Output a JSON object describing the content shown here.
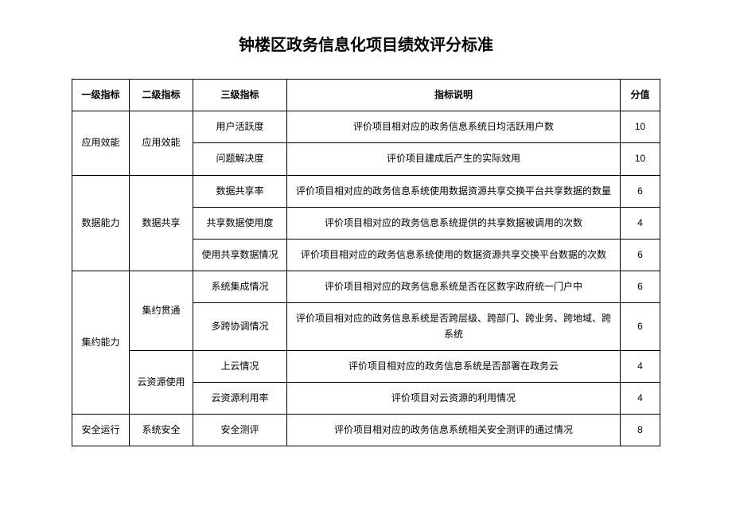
{
  "title": "钟楼区政务信息化项目绩效评分标准",
  "columns": [
    "一级指标",
    "二级指标",
    "三级指标",
    "指标说明",
    "分值"
  ],
  "rows": [
    {
      "l3": "用户活跃度",
      "desc": "评价项目相对应的政务信息系统日均活跃用户数",
      "score": "10"
    },
    {
      "l3": "问题解决度",
      "desc": "评价项目建成后产生的实际效用",
      "score": "10"
    },
    {
      "l3": "数据共享率",
      "desc": "评价项目相对应的政务信息系统使用数据资源共享交换平台共享数据的数量",
      "score": "6"
    },
    {
      "l3": "共享数据使用度",
      "desc": "评价项目相对应的政务信息系统提供的共享数据被调用的次数",
      "score": "4"
    },
    {
      "l3": "使用共享数据情况",
      "desc": "评价项目相对应的政务信息系统使用的数据资源共享交换平台数据的次数",
      "score": "6"
    },
    {
      "l3": "系统集成情况",
      "desc": "评价项目相对应的政务信息系统是否在区数字政府统一门户中",
      "score": "6"
    },
    {
      "l3": "多跨协调情况",
      "desc": "评价项目相对应的政务信息系统是否跨层级、跨部门、跨业务、跨地域、跨系统",
      "score": "6"
    },
    {
      "l3": "上云情况",
      "desc": "评价项目相对应的政务信息系统是否部署在政务云",
      "score": "4"
    },
    {
      "l3": "云资源利用率",
      "desc": "评价项目对云资源的利用情况",
      "score": "4"
    },
    {
      "l3": "安全测评",
      "desc": "评价项目相对应的政务信息系统相关安全测评的通过情况",
      "score": "8"
    }
  ],
  "l1": {
    "0": "应用效能",
    "1": "数据能力",
    "2": "集约能力",
    "3": "安全运行"
  },
  "l2": {
    "0": "应用效能",
    "1": "数据共享",
    "2": "集约贯通",
    "3": "云资源使用",
    "4": "系统安全"
  }
}
